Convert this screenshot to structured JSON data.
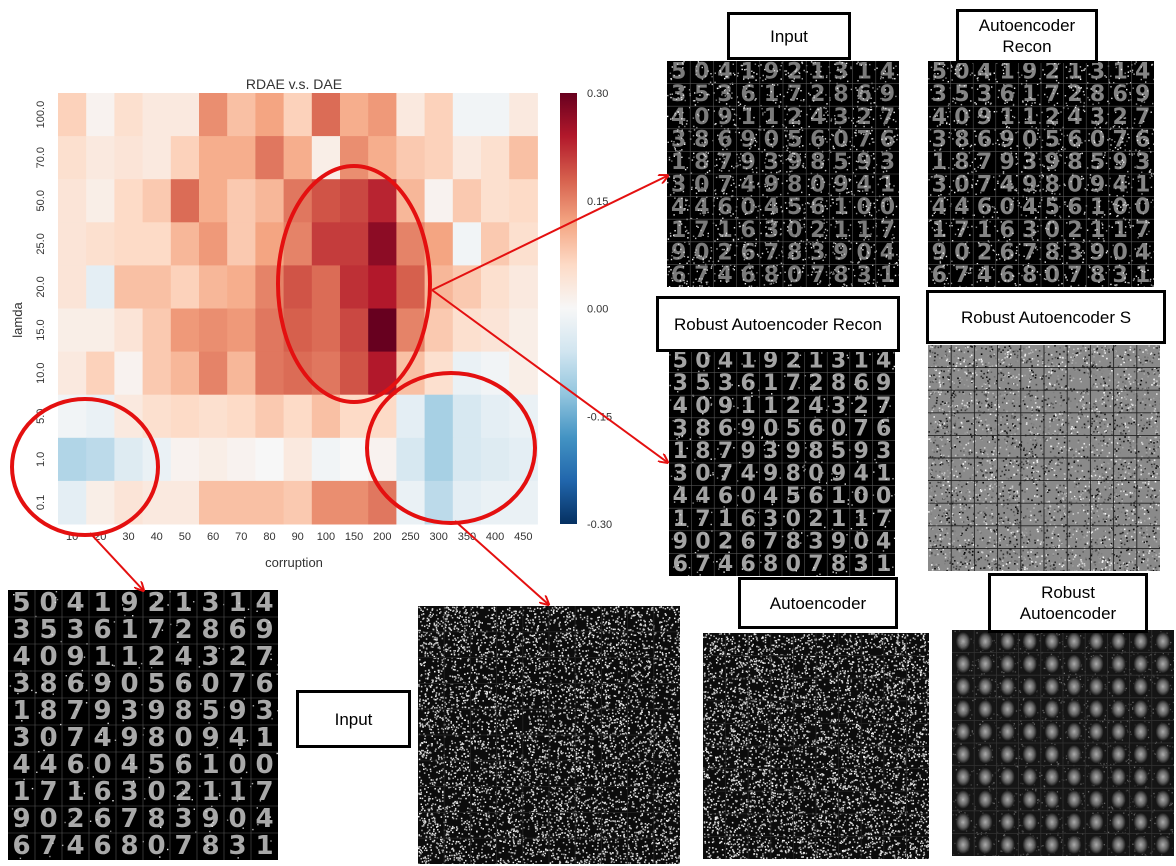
{
  "chart_data": {
    "type": "heatmap",
    "title": "RDAE v.s. DAE",
    "xlabel": "corruption",
    "ylabel": "lamda",
    "x": [
      "10",
      "20",
      "30",
      "40",
      "50",
      "60",
      "70",
      "80",
      "90",
      "100",
      "150",
      "200",
      "250",
      "300",
      "350",
      "400",
      "450"
    ],
    "y": [
      "100.0",
      "70.0",
      "50.0",
      "25.0",
      "20.0",
      "15.0",
      "10.0",
      "5.0",
      "1.0",
      "0.1"
    ],
    "values": [
      [
        0.07,
        0.01,
        0.05,
        0.03,
        0.03,
        0.14,
        0.09,
        0.12,
        0.07,
        0.17,
        0.11,
        0.13,
        0.03,
        0.07,
        -0.01,
        -0.01,
        0.03
      ],
      [
        0.05,
        0.03,
        0.04,
        0.03,
        0.07,
        0.11,
        0.11,
        0.16,
        0.11,
        0.02,
        0.14,
        0.11,
        0.08,
        0.07,
        0.03,
        0.05,
        0.09
      ],
      [
        0.04,
        0.02,
        0.06,
        0.08,
        0.17,
        0.11,
        0.08,
        0.1,
        0.16,
        0.19,
        0.2,
        0.23,
        0.1,
        0.01,
        0.08,
        0.05,
        0.06
      ],
      [
        0.04,
        0.05,
        0.06,
        0.06,
        0.1,
        0.13,
        0.08,
        0.12,
        0.15,
        0.21,
        0.21,
        0.27,
        0.15,
        0.12,
        -0.01,
        0.08,
        0.05
      ],
      [
        0.04,
        -0.03,
        0.09,
        0.09,
        0.07,
        0.1,
        0.11,
        0.15,
        0.19,
        0.17,
        0.22,
        0.24,
        0.18,
        0.1,
        0.08,
        0.05,
        0.03
      ],
      [
        0.02,
        0.02,
        0.04,
        0.08,
        0.13,
        0.14,
        0.13,
        0.16,
        0.18,
        0.17,
        0.2,
        0.3,
        0.15,
        0.08,
        0.05,
        0.04,
        0.02
      ],
      [
        0.03,
        0.07,
        0.01,
        0.08,
        0.1,
        0.15,
        0.1,
        0.16,
        0.17,
        0.16,
        0.19,
        0.24,
        0.09,
        0.05,
        -0.02,
        -0.01,
        0.02
      ],
      [
        -0.01,
        -0.02,
        0.03,
        0.05,
        0.06,
        0.05,
        0.06,
        0.08,
        0.06,
        0.09,
        0.06,
        0.06,
        -0.03,
        -0.1,
        -0.05,
        -0.03,
        -0.02
      ],
      [
        -0.09,
        -0.08,
        -0.04,
        -0.02,
        0.01,
        0.02,
        0.01,
        0.0,
        0.03,
        -0.01,
        0.0,
        0.01,
        -0.05,
        -0.1,
        -0.05,
        -0.04,
        -0.03
      ],
      [
        -0.03,
        0.02,
        0.04,
        0.03,
        0.03,
        0.09,
        0.09,
        0.09,
        0.08,
        0.14,
        0.14,
        0.16,
        -0.02,
        -0.08,
        -0.03,
        -0.02,
        -0.02
      ]
    ],
    "vmin": -0.3,
    "vmax": 0.3,
    "colorbar_ticks": [
      "0.30",
      "0.15",
      "0.00",
      "-0.15",
      "-0.30"
    ],
    "colormap": "RdBu_r",
    "grid": false
  },
  "annotations": {
    "circle_color": "#e41010",
    "arrow_color": "#e41010"
  },
  "panel_labels": {
    "input_top": "Input",
    "ae_recon_top": "Autoencoder Recon",
    "rae_recon": "Robust Autoencoder Recon",
    "rae_s": "Robust Autoencoder S",
    "input_bottom": "Input",
    "ae_bottom": "Autoencoder",
    "rae_bottom": "Robust Autoencoder"
  },
  "digit_grid": [
    "5041921314",
    "3536172869",
    "4091124327",
    "3869056076",
    "1879398593",
    "3074980941",
    "4460456100",
    "1716302117",
    "9026783904",
    "6746807831"
  ]
}
